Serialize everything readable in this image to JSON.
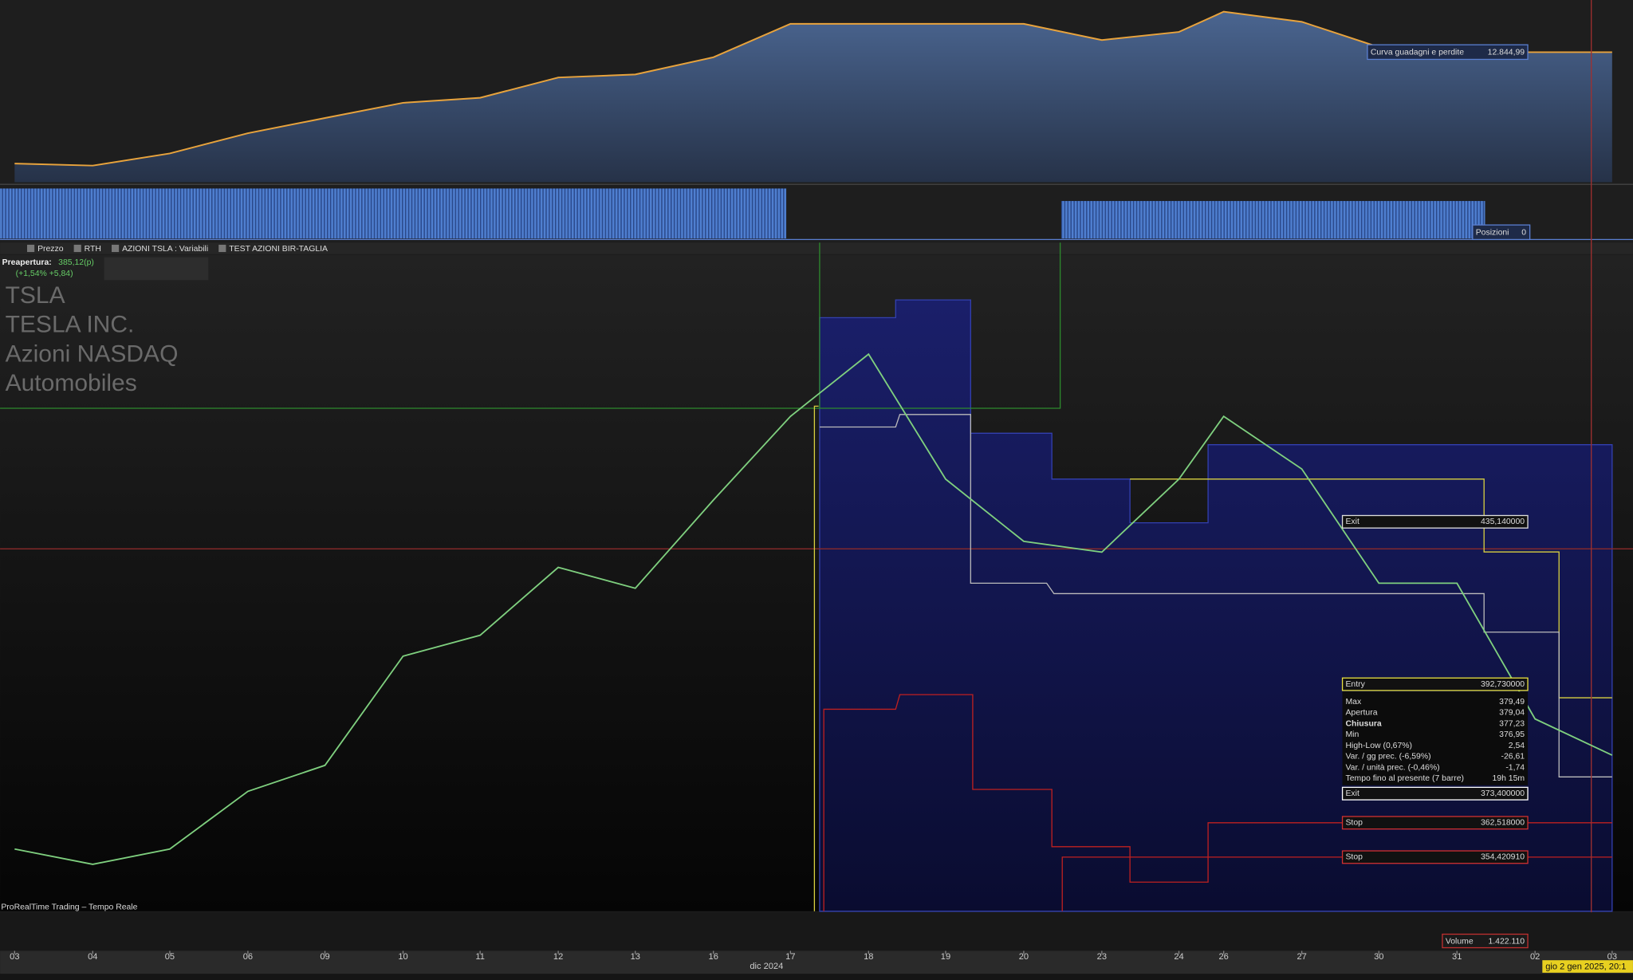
{
  "chart_data": [
    {
      "type": "area",
      "color": "#e8a33c",
      "fill": "#3d5a8a",
      "ylim": [
        0,
        18000
      ],
      "values": [
        1845,
        1645,
        2845,
        4845,
        6345,
        7845,
        8345,
        10345,
        10645,
        12345,
        15645,
        15645,
        15645,
        15645,
        14045,
        14845,
        16845,
        15845,
        13345,
        12845,
        12845,
        12844.99
      ]
    },
    {
      "type": "line",
      "color": "#7fd07f",
      "categories": [
        "03",
        "04",
        "05",
        "06",
        "09",
        "10",
        "11",
        "12",
        "13",
        "16",
        "17",
        "18",
        "19",
        "20",
        "23",
        "24",
        "26",
        "27",
        "30",
        "31",
        "02",
        "03"
      ],
      "values": [
        363.6,
        360.9,
        363.6,
        373.8,
        378.4,
        397.7,
        401.4,
        413.4,
        409.7,
        425.3,
        440.1,
        451.1,
        429.0,
        418.0,
        416.1,
        429.0,
        440.1,
        430.8,
        410.6,
        410.6,
        386.6,
        380.2
      ],
      "ylim": [
        352.6,
        468.6
      ]
    }
  ],
  "ui": {
    "equity_label": "Curva guadagni e perdite",
    "equity_value": "12.844,99",
    "positions_label": "Posizioni",
    "positions_value": "0",
    "toolbar": [
      "Prezzo",
      "RTH",
      "AZIONI TSLA : Variabili",
      "TEST AZIONI BIR-TAGLIA"
    ],
    "preopen_label": "Preapertura:",
    "preopen_value": "385,12(p)",
    "preopen_change": "(+1,54% +5,84)",
    "instrument": [
      "TSLA",
      "TESLA INC.",
      "Azioni NASDAQ",
      "Automobiles"
    ],
    "exit_top": {
      "label": "Exit",
      "value": "435,140000"
    },
    "entry": {
      "label": "Entry",
      "value": "392,730000"
    },
    "info_rows": [
      [
        "Max",
        "379,49"
      ],
      [
        "Apertura",
        "379,04"
      ],
      [
        "Chiusura",
        "377,23"
      ],
      [
        "Min",
        "376,95"
      ],
      [
        "High-Low (0,67%)",
        "2,54"
      ],
      [
        "Var. / gg prec. (-6,59%)",
        "-26,61"
      ],
      [
        "Var. / unità prec. (-0,46%)",
        "-1,74"
      ],
      [
        "Tempo fino al presente (7 barre)",
        "19h 15m"
      ]
    ],
    "exit_bottom": {
      "label": "Exit",
      "value": "373,400000"
    },
    "stops": [
      {
        "label": "Stop",
        "value": "362,518000"
      },
      {
        "label": "Stop",
        "value": "354,420910"
      }
    ],
    "footer": "ProRealTime Trading – Tempo Reale",
    "volume_label": "Volume",
    "volume_value": "1.422.110",
    "month_label": "dic 2024",
    "datetime": "gio 2 gen 2025, 20:1"
  }
}
